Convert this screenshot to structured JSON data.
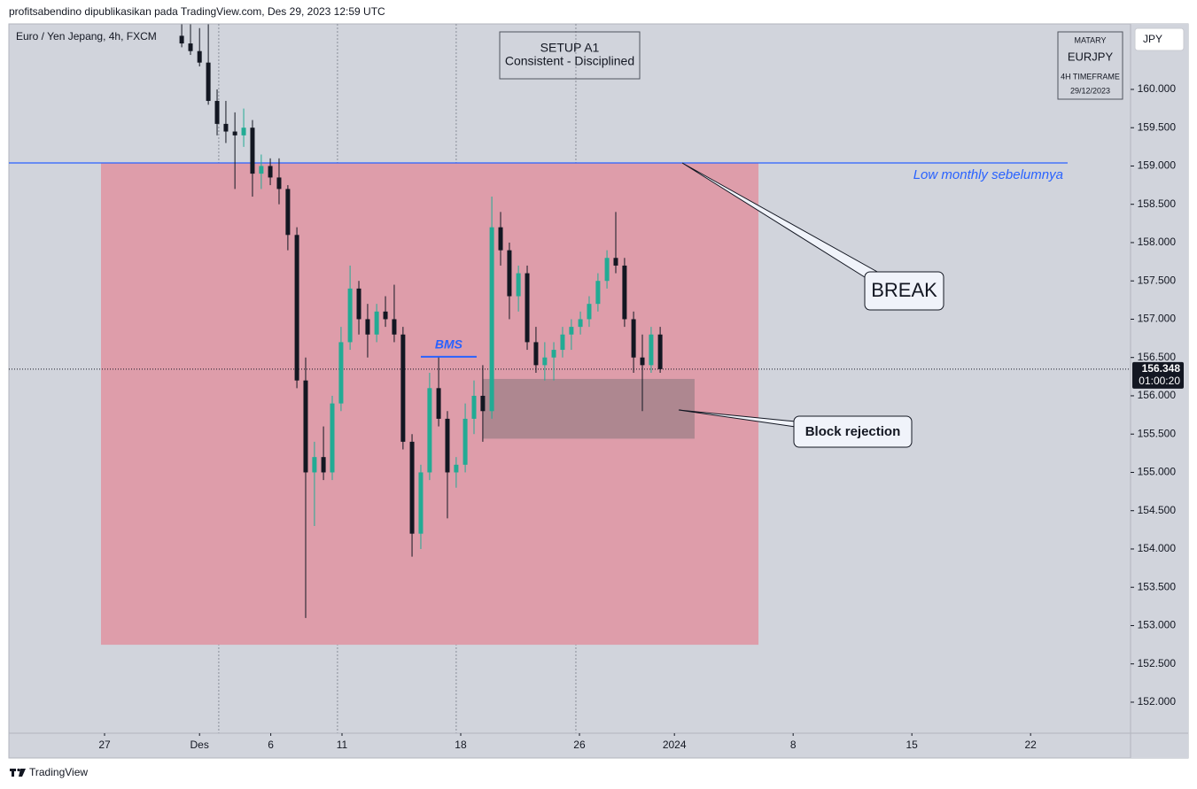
{
  "header": {
    "publisher": "profitsabendino dipublikasikan pada TradingView.com, Des 29, 2023 12:59 UTC",
    "footer": "TradingView"
  },
  "setup_box": {
    "title": "SETUP A1",
    "subtitle": "Consistent - Disciplined"
  },
  "watermark": {
    "author": "MATARY",
    "symbol": "EURJPY",
    "timeframe": "4H TIMEFRAME",
    "date": "29/12/2023"
  },
  "chart_data": {
    "type": "candlestick",
    "title": "Euro / Yen Jepang, 4h, FXCM",
    "currency": "JPY",
    "countdown": "01:00:20",
    "up_color": "#22ab94",
    "down_color": "#131722",
    "x": [
      3.25,
      3.62,
      4.0,
      4.37,
      4.74,
      5.11,
      5.49,
      5.86,
      6.23,
      6.6,
      6.98,
      7.35,
      7.72,
      8.1,
      8.47,
      8.84,
      9.22,
      9.59,
      9.96,
      10.34,
      10.71,
      11.08,
      11.46,
      11.83,
      12.2,
      12.57,
      12.95,
      13.32,
      13.69,
      14.07,
      14.44,
      14.81,
      15.19,
      15.56,
      15.93,
      16.31,
      16.68,
      17.05,
      17.43,
      17.8,
      18.17,
      18.54,
      18.92,
      19.29,
      19.66,
      20.04,
      20.41,
      20.78,
      21.16,
      21.53,
      21.9,
      22.28,
      22.65,
      23.02,
      23.4
    ],
    "open": [
      160.7,
      160.6,
      160.5,
      160.35,
      159.85,
      159.55,
      159.45,
      159.4,
      159.5,
      158.9,
      159.0,
      158.85,
      158.7,
      158.1,
      156.2,
      155.0,
      155.2,
      155.0,
      155.9,
      156.7,
      157.4,
      157.0,
      156.8,
      157.1,
      157.0,
      156.8,
      155.4,
      154.2,
      155.0,
      156.1,
      155.7,
      155.0,
      155.1,
      155.7,
      156.0,
      155.8,
      158.2,
      157.9,
      157.3,
      157.6,
      156.7,
      156.4,
      156.5,
      156.6,
      156.8,
      156.9,
      157.0,
      157.2,
      157.5,
      157.8,
      157.7,
      157.0,
      156.5,
      156.4,
      156.8
    ],
    "high": [
      160.85,
      160.85,
      160.8,
      160.85,
      160.0,
      159.85,
      159.7,
      159.75,
      159.6,
      159.15,
      159.1,
      159.1,
      158.75,
      158.2,
      156.5,
      155.4,
      155.6,
      156.0,
      156.9,
      157.7,
      157.5,
      157.2,
      157.2,
      157.3,
      157.45,
      156.9,
      155.5,
      155.1,
      156.3,
      156.5,
      155.8,
      155.2,
      155.9,
      156.2,
      156.4,
      158.6,
      158.4,
      158.0,
      157.7,
      157.7,
      156.9,
      156.7,
      156.7,
      156.9,
      157.0,
      157.1,
      157.3,
      157.6,
      157.9,
      158.4,
      157.8,
      157.1,
      156.8,
      156.9,
      156.9
    ],
    "low": [
      160.55,
      160.45,
      160.3,
      159.8,
      159.4,
      159.3,
      158.7,
      159.25,
      158.6,
      158.7,
      158.75,
      158.5,
      157.9,
      156.1,
      153.1,
      154.3,
      154.9,
      154.9,
      155.8,
      156.6,
      156.8,
      156.5,
      156.7,
      156.9,
      156.7,
      155.3,
      153.9,
      154.0,
      154.9,
      155.6,
      154.4,
      154.8,
      155.0,
      155.5,
      155.4,
      155.7,
      157.7,
      157.0,
      157.1,
      156.6,
      156.3,
      156.2,
      156.2,
      156.5,
      156.6,
      156.8,
      156.9,
      157.1,
      157.4,
      157.6,
      156.9,
      156.3,
      155.8,
      156.3,
      156.3
    ],
    "close": [
      160.6,
      160.5,
      160.35,
      159.85,
      159.55,
      159.45,
      159.4,
      159.5,
      158.9,
      159.0,
      158.85,
      158.7,
      158.1,
      156.2,
      155.0,
      155.2,
      155.0,
      155.9,
      156.7,
      157.4,
      157.0,
      156.8,
      157.1,
      157.0,
      156.8,
      155.4,
      154.2,
      155.0,
      156.1,
      155.7,
      155.0,
      155.1,
      155.7,
      156.0,
      155.8,
      158.2,
      157.9,
      157.3,
      157.6,
      156.7,
      156.4,
      156.5,
      156.6,
      156.8,
      156.9,
      157.0,
      157.2,
      157.5,
      157.8,
      157.7,
      157.0,
      156.5,
      156.4,
      156.8,
      156.348
    ],
    "xlim": [
      -4.03,
      43.21
    ],
    "ylim": [
      151.595,
      160.855
    ],
    "xticks": [
      {
        "value": 0,
        "label": "27"
      },
      {
        "value": 4,
        "label": "Des"
      },
      {
        "value": 7,
        "label": "6"
      },
      {
        "value": 10,
        "label": "11"
      },
      {
        "value": 15,
        "label": "18"
      },
      {
        "value": 20,
        "label": "26"
      },
      {
        "value": 24,
        "label": "2024"
      },
      {
        "value": 29,
        "label": "8"
      },
      {
        "value": 34,
        "label": "15"
      },
      {
        "value": 39,
        "label": "22"
      }
    ],
    "yticks": [
      {
        "value": 152,
        "label": "152.000"
      },
      {
        "value": 152.5,
        "label": "152.500"
      },
      {
        "value": 153,
        "label": "153.000"
      },
      {
        "value": 153.5,
        "label": "153.500"
      },
      {
        "value": 154,
        "label": "154.000"
      },
      {
        "value": 154.5,
        "label": "154.500"
      },
      {
        "value": 155,
        "label": "155.000"
      },
      {
        "value": 155.5,
        "label": "155.500"
      },
      {
        "value": 156,
        "label": "156.000"
      },
      {
        "value": 156.5,
        "label": "156.500"
      },
      {
        "value": 157,
        "label": "157.000"
      },
      {
        "value": 157.5,
        "label": "157.500"
      },
      {
        "value": 158,
        "label": "158.000"
      },
      {
        "value": 158.5,
        "label": "158.500"
      },
      {
        "value": 159,
        "label": "159.000"
      },
      {
        "value": 159.5,
        "label": "159.500"
      },
      {
        "value": 160,
        "label": "160.000"
      }
    ],
    "session_breaks": [
      4.81,
      9.81,
      14.81,
      19.85
    ],
    "range_zone": {
      "xlim": [
        -0.15,
        27.54
      ],
      "ylim": [
        152.75,
        159.04
      ],
      "color": "#de9daa"
    },
    "block_rejection": {
      "label": "Block rejection",
      "xlim": [
        15.93,
        24.85
      ],
      "ylim": [
        155.44,
        156.22
      ],
      "color": "#ae8790"
    },
    "low_monthly": {
      "label": "Low monthly sebelumnya",
      "value": 159.04,
      "xlim": [
        -4.03,
        40.56
      ],
      "color": "#2962ff"
    },
    "bms": {
      "label": "BMS",
      "value": 156.51,
      "xlim": [
        13.32,
        15.67
      ],
      "color": "#2962ff"
    },
    "break_label": "BREAK"
  }
}
